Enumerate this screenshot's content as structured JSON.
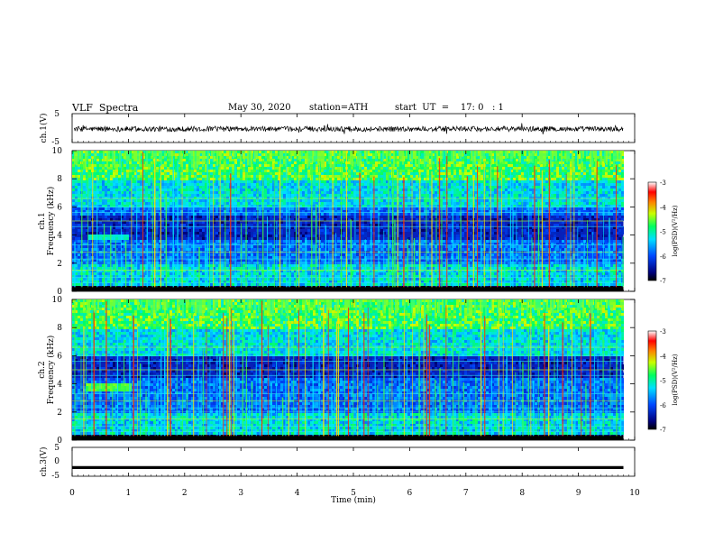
{
  "header": {
    "title": "VLF  Spectra",
    "date": "May 30, 2020",
    "station": "station=ATH",
    "start": "start  UT  =    17: 0   : 1"
  },
  "chart_data": [
    {
      "type": "line",
      "name": "ch1-waveform",
      "ylabel": "ch.1(V)",
      "yticks": [
        "5",
        "-5"
      ],
      "ylim": [
        -5,
        5
      ],
      "xlim": [
        0,
        10
      ],
      "approx_mean": -0.3,
      "approx_range": [
        -2.5,
        2.0
      ]
    },
    {
      "type": "heatmap",
      "name": "ch1-spectrogram",
      "ylabel": "ch.1\nFrequency  (kHz)",
      "ylabel_line1": "ch.1",
      "ylabel_line2": "Frequency  (kHz)",
      "yticks": [
        "0",
        "2",
        "4",
        "6",
        "8",
        "10"
      ],
      "ylim": [
        0,
        10
      ],
      "xlim": [
        0,
        9.8
      ],
      "colorbar": {
        "label": "log(PSD)(V²/Hz)",
        "ticks": [
          "-3",
          "-4",
          "-5",
          "-6",
          "-7"
        ],
        "range": [
          -7,
          -3
        ]
      },
      "features": {
        "quiet_band_khz": [
          3.8,
          5.5
        ],
        "hiss_band_khz": [
          3.7,
          4.2
        ],
        "hiss_time_min": [
          0.25,
          1.0
        ]
      }
    },
    {
      "type": "heatmap",
      "name": "ch2-spectrogram",
      "ylabel": "ch.2\nFrequency  (kHz)",
      "ylabel_line1": "ch.2",
      "ylabel_line2": "Frequency  (kHz)",
      "yticks": [
        "0",
        "2",
        "4",
        "6",
        "8",
        "10"
      ],
      "ylim": [
        0,
        10
      ],
      "xlim": [
        0,
        9.8
      ],
      "colorbar": {
        "label": "log(PSD)(V²/Hz)",
        "ticks": [
          "-3",
          "-4",
          "-5",
          "-6",
          "-7"
        ],
        "range": [
          -7,
          -3
        ]
      },
      "features": {
        "quiet_band_khz": [
          4.5,
          6.0
        ],
        "hiss_band_khz": [
          3.5,
          4.2
        ],
        "hiss_time_min": [
          0.2,
          1.05
        ]
      }
    },
    {
      "type": "line",
      "name": "ch3-waveform",
      "ylabel": "ch.3(V)",
      "yticks": [
        "5",
        "0",
        "-5"
      ],
      "ylim": [
        -5,
        5
      ],
      "xlim": [
        0,
        10
      ],
      "approx_level": -2.0
    }
  ],
  "xaxis": {
    "label": "Time  (min)",
    "ticks": [
      "0",
      "1",
      "2",
      "3",
      "4",
      "5",
      "6",
      "7",
      "8",
      "9",
      "10"
    ],
    "range": [
      0,
      10
    ]
  }
}
